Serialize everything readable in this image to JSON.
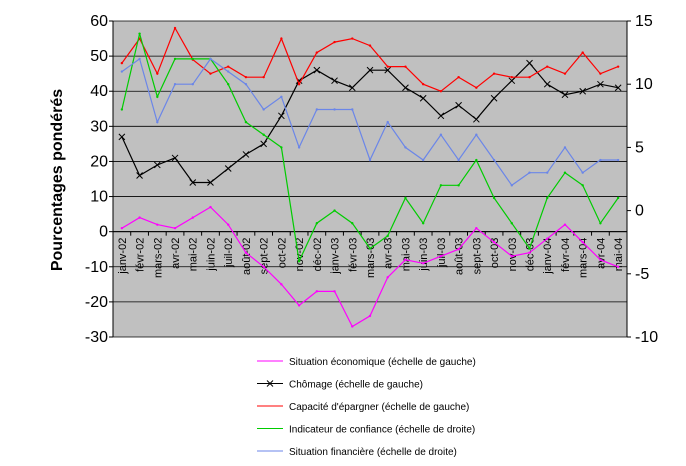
{
  "chart_data": {
    "type": "line",
    "ylabel": "Pourcentages pondérés",
    "y_left_lim": [
      -30,
      60
    ],
    "y_left_ticks": [
      "60",
      "50",
      "40",
      "30",
      "20",
      "10",
      "0",
      "-10",
      "-20",
      "-30"
    ],
    "y_right_lim": [
      -10,
      15
    ],
    "y_right_ticks": [
      "15",
      "10",
      "5",
      "0",
      "-5",
      "-10"
    ],
    "categories": [
      "janv-02",
      "févr-02",
      "mars-02",
      "avr-02",
      "mai-02",
      "juin-02",
      "juil-02",
      "août-02",
      "sept-02",
      "oct-02",
      "nov-02",
      "déc-02",
      "janv-03",
      "févr-03",
      "mars-03",
      "avr-03",
      "mai-03",
      "juin-03",
      "juil-03",
      "août-03",
      "sept-03",
      "oct-03",
      "nov-03",
      "déc-03",
      "janv-04",
      "févr-04",
      "mars-04",
      "avr-04",
      "mai-04"
    ],
    "x_labels_shown": [
      "janv-02",
      "févr-02",
      "mars-02",
      "avr-02",
      "mai-02",
      "juin-02",
      "juil-02",
      "août-02",
      "sept-02",
      "oct-02",
      "nov-02",
      "déc-02",
      "janv-03",
      "févr-03",
      "mars-03",
      "avr-03",
      "mai-03",
      "juin-03",
      "juil-03",
      "août-03",
      "sept-03",
      "oct-03",
      "nov-03",
      "déc-03",
      "janv-04",
      "févr-04",
      "mars-04",
      "avr-04",
      "mai-04"
    ],
    "grid": true,
    "legend_position": "bottom",
    "colors": {
      "plot_background": "#c0c0c0",
      "gridline": "#000000"
    },
    "series": [
      {
        "name": "Situation économique (échelle de gauche)",
        "axis": "left",
        "color": "#ff00ff",
        "marker": "none",
        "values": [
          1,
          4,
          2,
          1,
          4,
          7,
          2,
          -6,
          -10,
          -15,
          -21,
          -17,
          -17,
          -27,
          -24,
          -13,
          -8,
          -9,
          -7,
          -5,
          1,
          -3,
          -7,
          -6,
          -2,
          2,
          -3,
          -8,
          -10
        ]
      },
      {
        "name": "Chômage (échelle de gauche)",
        "axis": "left",
        "color": "#000000",
        "marker": "x",
        "values": [
          27,
          16,
          19,
          21,
          14,
          14,
          18,
          22,
          25,
          33,
          43,
          46,
          43,
          41,
          46,
          46,
          41,
          38,
          33,
          36,
          32,
          38,
          43,
          48,
          42,
          39,
          40,
          42,
          41
        ]
      },
      {
        "name": "Capacité d'épargner (échelle de gauche)",
        "axis": "left",
        "color": "#ff0000",
        "marker": "none",
        "values": [
          48,
          55,
          45,
          58,
          49,
          45,
          47,
          44,
          44,
          55,
          42,
          51,
          54,
          55,
          53,
          47,
          47,
          42,
          40,
          44,
          41,
          45,
          44,
          44,
          47,
          45,
          51,
          45,
          47
        ]
      },
      {
        "name": "Indicateur de confiance (échelle de droite)",
        "axis": "right",
        "color": "#00cc00",
        "marker": "none",
        "values": [
          8,
          14,
          9,
          12,
          12,
          12,
          10,
          7,
          6,
          5,
          -4,
          -1,
          0,
          -1,
          -3,
          -2,
          1,
          -1,
          2,
          2,
          4,
          1,
          -1,
          -3,
          1,
          3,
          2,
          -1,
          1
        ]
      },
      {
        "name": "Situation financière (échelle de droite)",
        "axis": "right",
        "color": "#6b86e8",
        "marker": "none",
        "values": [
          11,
          12,
          7,
          10,
          10,
          12,
          11,
          10,
          8,
          9,
          5,
          8,
          8,
          8,
          4,
          7,
          5,
          4,
          6,
          4,
          6,
          4,
          2,
          3,
          3,
          5,
          3,
          4,
          4
        ]
      }
    ]
  }
}
